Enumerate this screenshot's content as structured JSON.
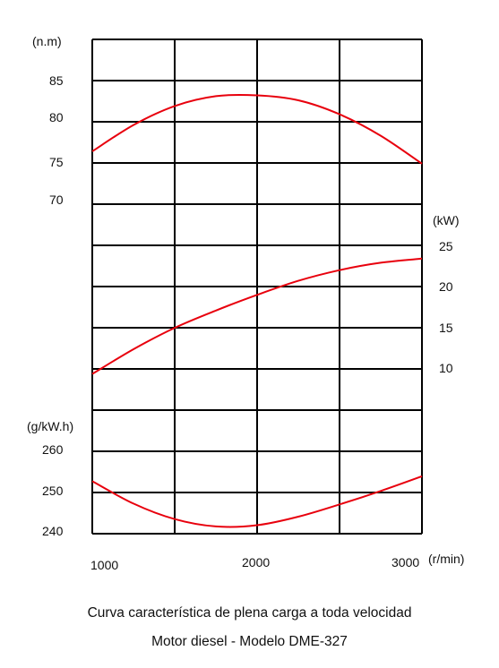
{
  "chart_data": {
    "type": "line",
    "x": [
      1000,
      1250,
      1500,
      1750,
      2000,
      2250,
      2500,
      2750,
      3000
    ],
    "xticks": [
      "1000",
      "2000",
      "3000"
    ],
    "xunit": "(r/min)",
    "xlim": [
      1000,
      3000
    ],
    "grid": true,
    "series": [
      {
        "unit": "(n.m)",
        "ticks": [
          "85",
          "80",
          "75",
          "70"
        ],
        "ylim": [
          65,
          90
        ],
        "values": [
          76.3,
          79.5,
          81.8,
          83.0,
          83.1,
          82.5,
          80.8,
          78.2,
          74.8
        ],
        "color": "#e8000d"
      },
      {
        "unit": "(kW)",
        "ticks": [
          "25",
          "20",
          "15",
          "10"
        ],
        "ylim": [
          0,
          30
        ],
        "values": [
          9.5,
          12.5,
          15.1,
          17.2,
          19.1,
          20.8,
          22.1,
          23.0,
          23.5
        ],
        "color": "#e8000d"
      },
      {
        "unit": "(g/kW.h)",
        "ticks": [
          "260",
          "250",
          "240"
        ],
        "ylim": [
          240,
          275
        ],
        "values": [
          252.0,
          246.5,
          242.7,
          240.9,
          241.2,
          243.3,
          246.3,
          249.6,
          253.2
        ],
        "color": "#e8000d"
      }
    ]
  },
  "caption": {
    "line1": "Curva característica de plena carga a toda velocidad",
    "line2": "Motor diesel - Modelo DME-327"
  }
}
